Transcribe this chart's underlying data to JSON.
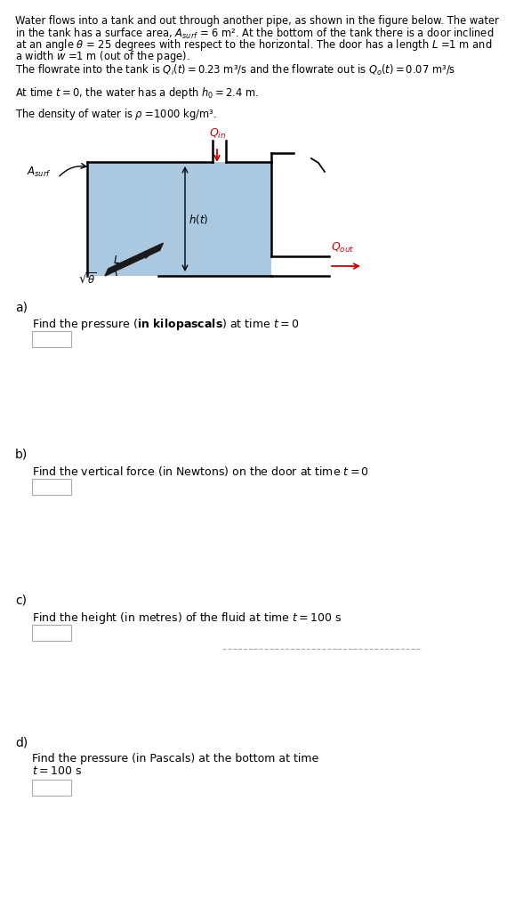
{
  "bg_color": "#ffffff",
  "text_color": "#000000",
  "fig_width": 4.69,
  "fig_height": 9.98,
  "header_line1": "Water flows into a tank and out through another pipe, as shown in the figure below. The water",
  "header_line2": "in the tank has a surface area, $A_{surf}$ = 6 m². At the bottom of the tank there is a door inclined",
  "header_line3": "at an angle $\\theta$ = 25 degrees with respect to the horizontal. The door has a length $L$ =1 m and",
  "header_line4": "a width $w$ =1 m (out of the page).",
  "header_line5": "The flowrate into the tank is $Q_i(t) = 0.23$ m³/s and the flowrate out is $Q_o(t) = 0.07$ m³/s",
  "header_line6": "At time $t = 0$, the water has a depth $h_0 = 2.4$ m.",
  "header_line7": "The density of water is $\\rho$ =1000 kg/m³.",
  "part_a_label": "a)",
  "part_b_label": "b)",
  "part_c_label": "c)",
  "part_d_label": "d)",
  "part_a_q1": "Find the pressure (",
  "part_a_bold": "in kilopascals",
  "part_a_q2": ") at time $t = 0$",
  "part_b_text": "Find the vertical force (in Newtons) on the door at time $t = 0$",
  "part_c_text": "Find the height (in metres) of the fluid at time $t = 100$ s",
  "part_d_line1": "Find the pressure (in Pascals) at the bottom at time",
  "part_d_line2": "$t = 100$ s",
  "water_color": "#aac8e0",
  "tank_color": "#000000",
  "door_color": "#1a1a1a",
  "qin_color": "#cc0000",
  "qout_color": "#cc0000",
  "dashed_color": "#aaaaaa",
  "theta_deg": 25,
  "font_size_header": 8.3,
  "font_size_part_label": 10,
  "font_size_part_text": 9,
  "font_size_diagram": 8.5
}
